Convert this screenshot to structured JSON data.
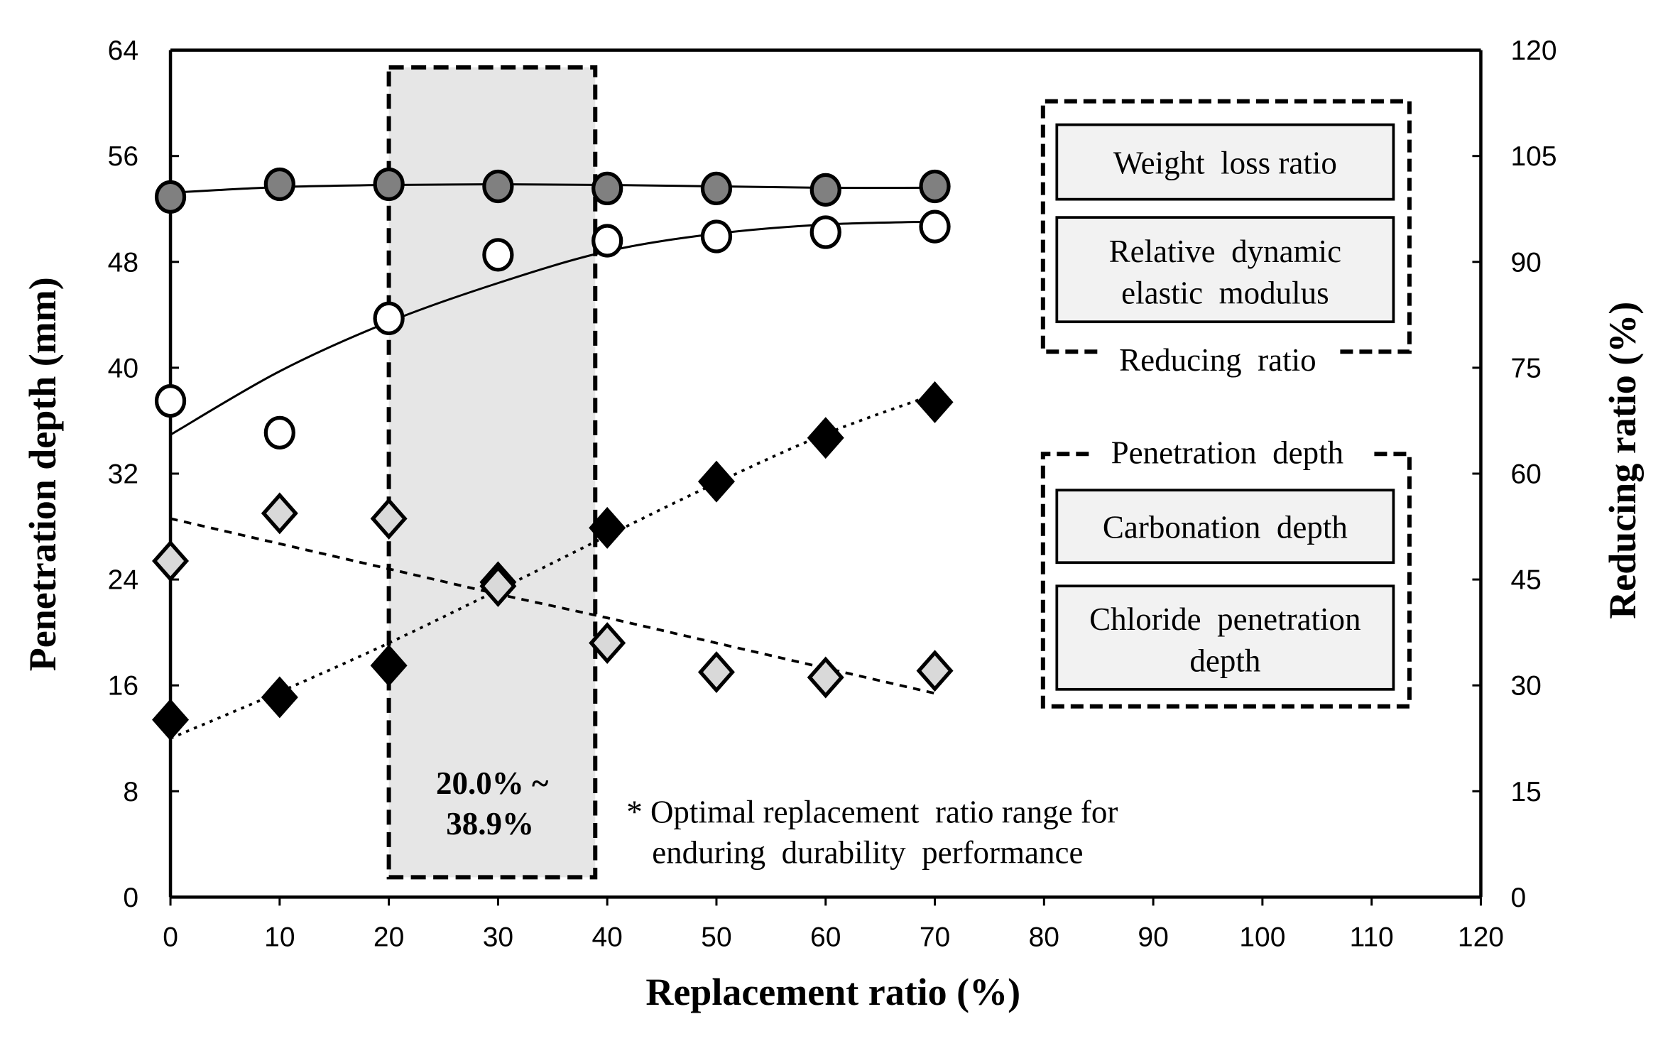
{
  "chart_data": {
    "type": "scatter",
    "xlabel": "Replacement ratio (%)",
    "ylabel": "Penetration depth (mm)",
    "y2label": "Reducing ratio (%)",
    "xlim": [
      0,
      120
    ],
    "ylim": [
      0,
      64
    ],
    "y2lim": [
      0,
      120
    ],
    "x_ticks": [
      "0",
      "10",
      "20",
      "30",
      "40",
      "50",
      "60",
      "70",
      "80",
      "90",
      "100",
      "110",
      "120"
    ],
    "y_ticks": [
      "0",
      "8",
      "16",
      "24",
      "32",
      "40",
      "48",
      "56",
      "64"
    ],
    "y2_ticks": [
      "0",
      "15",
      "30",
      "45",
      "60",
      "75",
      "90",
      "105",
      "120"
    ],
    "grid": false,
    "x": [
      0,
      10,
      20,
      30,
      40,
      50,
      60,
      70
    ],
    "series": [
      {
        "name": "Weight loss ratio",
        "axis": "right",
        "marker": "circle",
        "fill": "#808080",
        "values": [
          99.2,
          101.0,
          101.0,
          100.7,
          100.4,
          100.4,
          100.2,
          100.7
        ],
        "trend": [
          99.8,
          100.6,
          100.9,
          101.0,
          100.9,
          100.7,
          100.5,
          100.5
        ],
        "trend_style": "solid"
      },
      {
        "name": "Relative dynamic elastic modulus",
        "axis": "right",
        "marker": "circle",
        "fill": "#ffffff",
        "values": [
          70.3,
          65.8,
          82.0,
          91.0,
          93.0,
          93.6,
          94.2,
          95.0
        ],
        "trend": [
          65.5,
          74.5,
          81.5,
          87.0,
          91.5,
          94.0,
          95.3,
          95.7
        ],
        "trend_style": "solid"
      },
      {
        "name": "Carbonation depth",
        "axis": "left",
        "marker": "diamond",
        "fill": "#000000",
        "values": [
          13.4,
          15.1,
          17.5,
          23.8,
          27.9,
          31.4,
          34.7,
          37.4
        ],
        "trend": [
          12.0,
          15.5,
          19.2,
          23.2,
          27.3,
          31.3,
          35.0,
          38.0
        ],
        "trend_style": "dotted"
      },
      {
        "name": "Chloride penetration depth",
        "axis": "left",
        "marker": "diamond",
        "fill": "#d9d9d9",
        "values": [
          25.4,
          29.0,
          28.6,
          23.5,
          19.2,
          17.0,
          16.6,
          17.1
        ],
        "trend": [
          28.6,
          26.7,
          24.8,
          22.9,
          21.1,
          19.2,
          17.3,
          15.4
        ],
        "trend_style": "dashed"
      }
    ],
    "highlight_range": {
      "x": [
        20.0,
        38.9
      ],
      "label_line1": "20.0% ~",
      "label_line2": "38.9%"
    },
    "annotation": {
      "line1": "* Optimal replacement  ratio range for",
      "line2": "enduring  durability  performance"
    },
    "legend": {
      "group1_title": "Reducing  ratio",
      "group1_items": [
        "Weight  loss ratio",
        "Relative  dynamic",
        "elastic  modulus"
      ],
      "group2_title": "Penetration  depth",
      "group2_items": [
        "Carbonation  depth",
        "Chloride  penetration",
        "depth"
      ],
      "placement": "right"
    }
  }
}
